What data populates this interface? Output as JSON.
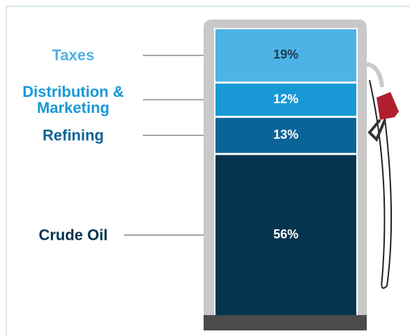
{
  "chart_data": {
    "type": "stacked-bar",
    "series": [
      {
        "name": "Taxes",
        "color": "#4db3e6",
        "values": [
          19
        ],
        "value_labels": [
          "19%"
        ]
      },
      {
        "name": "Distribution & Marketing",
        "color": "#1899d6",
        "values": [
          12
        ],
        "value_labels": [
          "12%"
        ]
      },
      {
        "name": "Refining",
        "color": "#0b6497",
        "values": [
          13
        ],
        "value_labels": [
          "13%"
        ]
      },
      {
        "name": "Crude Oil",
        "color": "#05344f",
        "values": [
          56
        ],
        "value_labels": [
          "56%"
        ]
      }
    ]
  }
}
